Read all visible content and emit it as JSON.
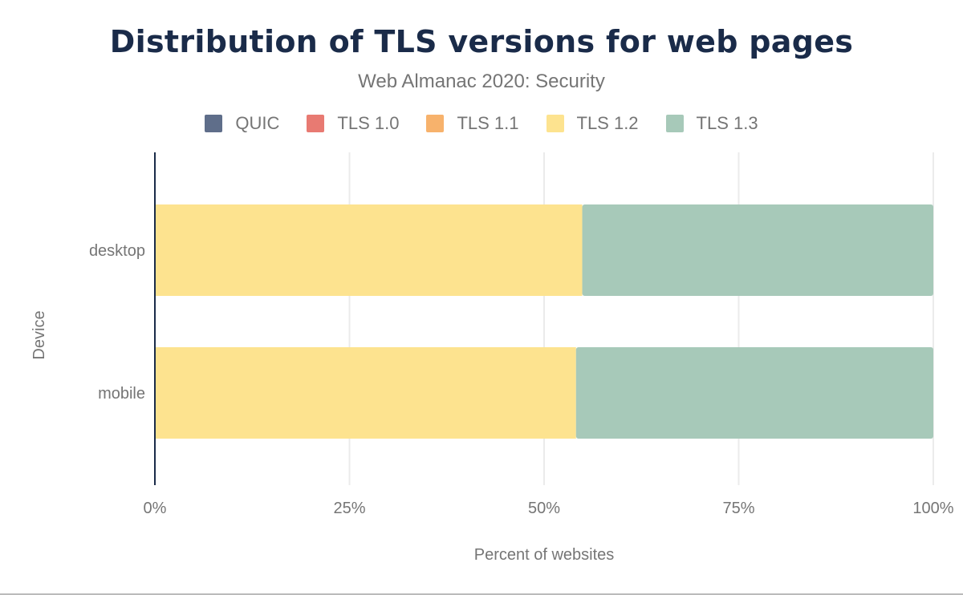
{
  "chart_data": {
    "type": "bar",
    "orientation": "horizontal",
    "stacked": true,
    "title": "Distribution of TLS versions for web pages",
    "subtitle": "Web Almanac 2020: Security",
    "xlabel": "Percent of websites",
    "ylabel": "Device",
    "xlim": [
      0,
      100
    ],
    "xticks": [
      "0%",
      "25%",
      "50%",
      "75%",
      "100%"
    ],
    "grid": true,
    "legend_position": "top",
    "categories": [
      "desktop",
      "mobile"
    ],
    "series": [
      {
        "name": "QUIC",
        "color": "#5f6e8a",
        "values": [
          0,
          0
        ]
      },
      {
        "name": "TLS 1.0",
        "color": "#e87a72",
        "values": [
          0,
          0
        ]
      },
      {
        "name": "TLS 1.1",
        "color": "#f7b26c",
        "values": [
          0,
          0
        ]
      },
      {
        "name": "TLS 1.2",
        "color": "#fde38f",
        "values": [
          54.9,
          54.1
        ]
      },
      {
        "name": "TLS 1.3",
        "color": "#a7c9b9",
        "values": [
          45.1,
          45.9
        ]
      }
    ]
  }
}
